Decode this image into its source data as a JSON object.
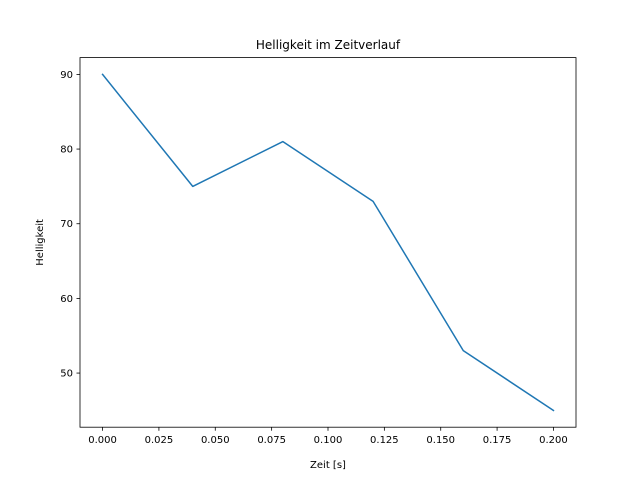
{
  "chart_data": {
    "type": "line",
    "title": "Helligkeit im Zeitverlauf",
    "xlabel": "Zeit [s]",
    "ylabel": "Helligkeit",
    "x": [
      0.0,
      0.04,
      0.08,
      0.12,
      0.16,
      0.2
    ],
    "series": [
      {
        "name": "Helligkeit",
        "values": [
          90,
          75,
          81,
          73,
          53,
          45
        ],
        "color": "#1f77b4"
      }
    ],
    "xlim": [
      -0.01,
      0.21
    ],
    "ylim": [
      42.75,
      92.25
    ],
    "xticks": [
      "0.000",
      "0.025",
      "0.050",
      "0.075",
      "0.100",
      "0.125",
      "0.150",
      "0.175",
      "0.200"
    ],
    "yticks": [
      "50",
      "60",
      "70",
      "80",
      "90"
    ],
    "grid": false,
    "legend": "none"
  }
}
